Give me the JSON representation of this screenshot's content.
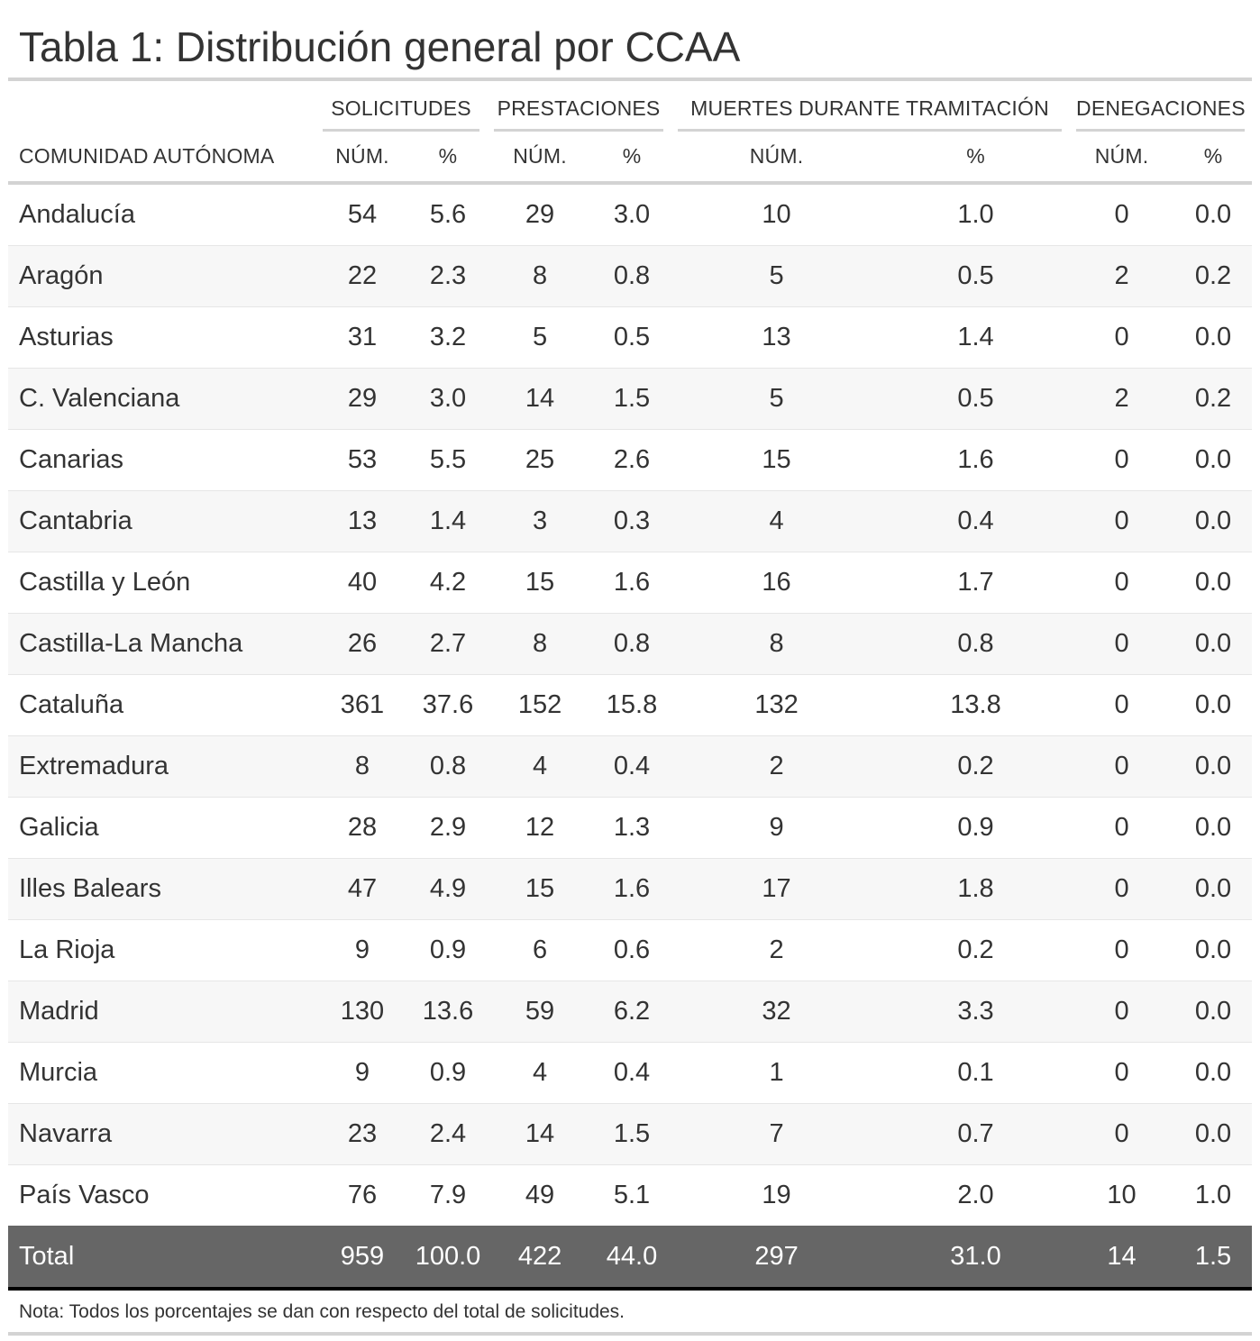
{
  "title": "Tabla 1: Distribución general por CCAA",
  "headers": {
    "spanners": [
      "SOLICITUDES",
      "PRESTACIONES",
      "MUERTES DURANTE TRAMITACIÓN",
      "DENEGACIONES"
    ],
    "columns": [
      "COMUNIDAD AUTÓNOMA",
      "NÚM.",
      "%",
      "NÚM.",
      "%",
      "NÚM.",
      "%",
      "NÚM.",
      "%"
    ]
  },
  "rows": [
    [
      "Andalucía",
      "54",
      "5.6",
      "29",
      "3.0",
      "10",
      "1.0",
      "0",
      "0.0"
    ],
    [
      "Aragón",
      "22",
      "2.3",
      "8",
      "0.8",
      "5",
      "0.5",
      "2",
      "0.2"
    ],
    [
      "Asturias",
      "31",
      "3.2",
      "5",
      "0.5",
      "13",
      "1.4",
      "0",
      "0.0"
    ],
    [
      "C. Valenciana",
      "29",
      "3.0",
      "14",
      "1.5",
      "5",
      "0.5",
      "2",
      "0.2"
    ],
    [
      "Canarias",
      "53",
      "5.5",
      "25",
      "2.6",
      "15",
      "1.6",
      "0",
      "0.0"
    ],
    [
      "Cantabria",
      "13",
      "1.4",
      "3",
      "0.3",
      "4",
      "0.4",
      "0",
      "0.0"
    ],
    [
      "Castilla y León",
      "40",
      "4.2",
      "15",
      "1.6",
      "16",
      "1.7",
      "0",
      "0.0"
    ],
    [
      "Castilla-La Mancha",
      "26",
      "2.7",
      "8",
      "0.8",
      "8",
      "0.8",
      "0",
      "0.0"
    ],
    [
      "Cataluña",
      "361",
      "37.6",
      "152",
      "15.8",
      "132",
      "13.8",
      "0",
      "0.0"
    ],
    [
      "Extremadura",
      "8",
      "0.8",
      "4",
      "0.4",
      "2",
      "0.2",
      "0",
      "0.0"
    ],
    [
      "Galicia",
      "28",
      "2.9",
      "12",
      "1.3",
      "9",
      "0.9",
      "0",
      "0.0"
    ],
    [
      "Illes Balears",
      "47",
      "4.9",
      "15",
      "1.6",
      "17",
      "1.8",
      "0",
      "0.0"
    ],
    [
      "La Rioja",
      "9",
      "0.9",
      "6",
      "0.6",
      "2",
      "0.2",
      "0",
      "0.0"
    ],
    [
      "Madrid",
      "130",
      "13.6",
      "59",
      "6.2",
      "32",
      "3.3",
      "0",
      "0.0"
    ],
    [
      "Murcia",
      "9",
      "0.9",
      "4",
      "0.4",
      "1",
      "0.1",
      "0",
      "0.0"
    ],
    [
      "Navarra",
      "23",
      "2.4",
      "14",
      "1.5",
      "7",
      "0.7",
      "0",
      "0.0"
    ],
    [
      "País Vasco",
      "76",
      "7.9",
      "49",
      "5.1",
      "19",
      "2.0",
      "10",
      "1.0"
    ]
  ],
  "total": [
    "Total",
    "959",
    "100.0",
    "422",
    "44.0",
    "297",
    "31.0",
    "14",
    "1.5"
  ],
  "note": "Nota: Todos los porcentajes se dan con respecto del total de solicitudes."
}
